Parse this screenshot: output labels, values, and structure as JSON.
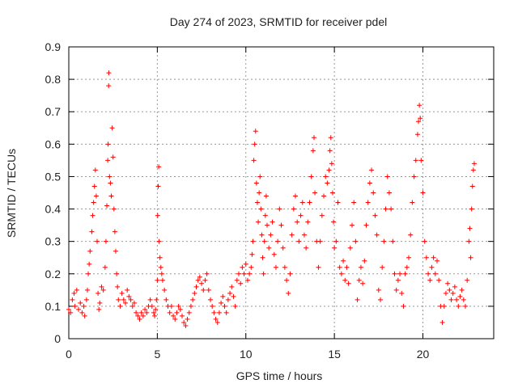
{
  "chart_data": {
    "type": "scatter",
    "title": "Day 274 of 2023, SRMTID for receiver pdel",
    "xlabel": "GPS time / hours",
    "ylabel": "SRMTID / TECUs",
    "xlim": [
      0,
      24
    ],
    "ylim": [
      0,
      0.9
    ],
    "xticks": [
      "0",
      "5",
      "10",
      "15",
      "20"
    ],
    "yticks": [
      "0",
      "0.1",
      "0.2",
      "0.3",
      "0.4",
      "0.5",
      "0.6",
      "0.7",
      "0.8",
      "0.9"
    ],
    "grid": true,
    "marker": "+",
    "color": "#ff0000",
    "series": [
      {
        "name": "SRMTID",
        "points": [
          [
            0.0,
            0.09
          ],
          [
            0.1,
            0.08
          ],
          [
            0.2,
            0.12
          ],
          [
            0.3,
            0.14
          ],
          [
            0.35,
            0.1
          ],
          [
            0.45,
            0.15
          ],
          [
            0.55,
            0.09
          ],
          [
            0.65,
            0.11
          ],
          [
            0.75,
            0.08
          ],
          [
            0.85,
            0.1
          ],
          [
            0.9,
            0.07
          ],
          [
            1.0,
            0.12
          ],
          [
            1.05,
            0.15
          ],
          [
            1.1,
            0.2
          ],
          [
            1.15,
            0.23
          ],
          [
            1.2,
            0.27
          ],
          [
            1.3,
            0.33
          ],
          [
            1.35,
            0.38
          ],
          [
            1.4,
            0.42
          ],
          [
            1.45,
            0.47
          ],
          [
            1.5,
            0.52
          ],
          [
            1.55,
            0.44
          ],
          [
            1.6,
            0.3
          ],
          [
            1.65,
            0.14
          ],
          [
            1.7,
            0.09
          ],
          [
            1.75,
            0.11
          ],
          [
            1.85,
            0.16
          ],
          [
            1.95,
            0.15
          ],
          [
            2.05,
            0.22
          ],
          [
            2.1,
            0.3
          ],
          [
            2.15,
            0.41
          ],
          [
            2.2,
            0.55
          ],
          [
            2.22,
            0.6
          ],
          [
            2.25,
            0.78
          ],
          [
            2.26,
            0.82
          ],
          [
            2.3,
            0.5
          ],
          [
            2.35,
            0.48
          ],
          [
            2.4,
            0.44
          ],
          [
            2.45,
            0.65
          ],
          [
            2.5,
            0.56
          ],
          [
            2.55,
            0.4
          ],
          [
            2.6,
            0.33
          ],
          [
            2.65,
            0.27
          ],
          [
            2.7,
            0.2
          ],
          [
            2.75,
            0.16
          ],
          [
            2.8,
            0.12
          ],
          [
            2.9,
            0.1
          ],
          [
            3.0,
            0.14
          ],
          [
            3.1,
            0.12
          ],
          [
            3.2,
            0.11
          ],
          [
            3.3,
            0.15
          ],
          [
            3.4,
            0.13
          ],
          [
            3.5,
            0.12
          ],
          [
            3.6,
            0.1
          ],
          [
            3.7,
            0.11
          ],
          [
            3.8,
            0.08
          ],
          [
            3.9,
            0.07
          ],
          [
            4.0,
            0.06
          ],
          [
            4.1,
            0.08
          ],
          [
            4.2,
            0.07
          ],
          [
            4.3,
            0.09
          ],
          [
            4.4,
            0.08
          ],
          [
            4.5,
            0.1
          ],
          [
            4.6,
            0.12
          ],
          [
            4.7,
            0.1
          ],
          [
            4.8,
            0.08
          ],
          [
            4.85,
            0.07
          ],
          [
            4.9,
            0.09
          ],
          [
            4.95,
            0.12
          ],
          [
            5.0,
            0.18
          ],
          [
            5.02,
            0.38
          ],
          [
            5.05,
            0.47
          ],
          [
            5.08,
            0.53
          ],
          [
            5.1,
            0.3
          ],
          [
            5.15,
            0.25
          ],
          [
            5.2,
            0.22
          ],
          [
            5.25,
            0.2
          ],
          [
            5.3,
            0.18
          ],
          [
            5.4,
            0.15
          ],
          [
            5.5,
            0.12
          ],
          [
            5.6,
            0.1
          ],
          [
            5.7,
            0.08
          ],
          [
            5.8,
            0.1
          ],
          [
            5.9,
            0.07
          ],
          [
            6.0,
            0.06
          ],
          [
            6.1,
            0.08
          ],
          [
            6.2,
            0.1
          ],
          [
            6.3,
            0.09
          ],
          [
            6.4,
            0.07
          ],
          [
            6.5,
            0.05
          ],
          [
            6.6,
            0.04
          ],
          [
            6.7,
            0.06
          ],
          [
            6.8,
            0.08
          ],
          [
            6.9,
            0.1
          ],
          [
            7.0,
            0.12
          ],
          [
            7.1,
            0.14
          ],
          [
            7.2,
            0.16
          ],
          [
            7.3,
            0.18
          ],
          [
            7.4,
            0.19
          ],
          [
            7.5,
            0.17
          ],
          [
            7.6,
            0.15
          ],
          [
            7.7,
            0.18
          ],
          [
            7.8,
            0.2
          ],
          [
            7.9,
            0.15
          ],
          [
            8.0,
            0.12
          ],
          [
            8.1,
            0.1
          ],
          [
            8.2,
            0.08
          ],
          [
            8.3,
            0.06
          ],
          [
            8.4,
            0.05
          ],
          [
            8.5,
            0.08
          ],
          [
            8.6,
            0.11
          ],
          [
            8.7,
            0.13
          ],
          [
            8.8,
            0.1
          ],
          [
            8.9,
            0.08
          ],
          [
            9.0,
            0.12
          ],
          [
            9.1,
            0.14
          ],
          [
            9.2,
            0.16
          ],
          [
            9.3,
            0.13
          ],
          [
            9.4,
            0.1
          ],
          [
            9.5,
            0.18
          ],
          [
            9.6,
            0.2
          ],
          [
            9.7,
            0.17
          ],
          [
            9.8,
            0.22
          ],
          [
            9.9,
            0.2
          ],
          [
            10.0,
            0.23
          ],
          [
            10.1,
            0.18
          ],
          [
            10.2,
            0.2
          ],
          [
            10.3,
            0.22
          ],
          [
            10.35,
            0.26
          ],
          [
            10.4,
            0.3
          ],
          [
            10.45,
            0.55
          ],
          [
            10.5,
            0.6
          ],
          [
            10.55,
            0.64
          ],
          [
            10.6,
            0.48
          ],
          [
            10.65,
            0.42
          ],
          [
            10.7,
            0.36
          ],
          [
            10.75,
            0.45
          ],
          [
            10.8,
            0.5
          ],
          [
            10.85,
            0.4
          ],
          [
            10.9,
            0.32
          ],
          [
            10.95,
            0.25
          ],
          [
            11.0,
            0.2
          ],
          [
            11.05,
            0.3
          ],
          [
            11.1,
            0.38
          ],
          [
            11.15,
            0.44
          ],
          [
            11.2,
            0.35
          ],
          [
            11.3,
            0.28
          ],
          [
            11.4,
            0.32
          ],
          [
            11.5,
            0.36
          ],
          [
            11.6,
            0.26
          ],
          [
            11.7,
            0.22
          ],
          [
            11.8,
            0.3
          ],
          [
            11.9,
            0.4
          ],
          [
            12.0,
            0.35
          ],
          [
            12.1,
            0.28
          ],
          [
            12.2,
            0.22
          ],
          [
            12.3,
            0.18
          ],
          [
            12.4,
            0.14
          ],
          [
            12.5,
            0.2
          ],
          [
            12.6,
            0.32
          ],
          [
            12.7,
            0.4
          ],
          [
            12.8,
            0.44
          ],
          [
            12.9,
            0.36
          ],
          [
            13.0,
            0.3
          ],
          [
            13.1,
            0.38
          ],
          [
            13.2,
            0.42
          ],
          [
            13.3,
            0.32
          ],
          [
            13.4,
            0.28
          ],
          [
            13.5,
            0.36
          ],
          [
            13.6,
            0.42
          ],
          [
            13.7,
            0.5
          ],
          [
            13.8,
            0.58
          ],
          [
            13.85,
            0.62
          ],
          [
            13.9,
            0.45
          ],
          [
            14.0,
            0.3
          ],
          [
            14.1,
            0.22
          ],
          [
            14.2,
            0.3
          ],
          [
            14.3,
            0.38
          ],
          [
            14.4,
            0.44
          ],
          [
            14.5,
            0.5
          ],
          [
            14.6,
            0.48
          ],
          [
            14.7,
            0.52
          ],
          [
            14.75,
            0.58
          ],
          [
            14.8,
            0.62
          ],
          [
            14.85,
            0.54
          ],
          [
            14.9,
            0.45
          ],
          [
            14.95,
            0.36
          ],
          [
            15.0,
            0.28
          ],
          [
            15.1,
            0.3
          ],
          [
            15.2,
            0.42
          ],
          [
            15.3,
            0.22
          ],
          [
            15.4,
            0.2
          ],
          [
            15.5,
            0.24
          ],
          [
            15.6,
            0.18
          ],
          [
            15.7,
            0.22
          ],
          [
            15.8,
            0.17
          ],
          [
            15.9,
            0.28
          ],
          [
            16.0,
            0.35
          ],
          [
            16.1,
            0.42
          ],
          [
            16.2,
            0.3
          ],
          [
            16.3,
            0.12
          ],
          [
            16.4,
            0.18
          ],
          [
            16.5,
            0.22
          ],
          [
            16.6,
            0.17
          ],
          [
            16.7,
            0.24
          ],
          [
            16.8,
            0.35
          ],
          [
            16.9,
            0.42
          ],
          [
            17.0,
            0.48
          ],
          [
            17.1,
            0.52
          ],
          [
            17.2,
            0.45
          ],
          [
            17.3,
            0.38
          ],
          [
            17.4,
            0.32
          ],
          [
            17.5,
            0.15
          ],
          [
            17.6,
            0.12
          ],
          [
            17.7,
            0.22
          ],
          [
            17.8,
            0.3
          ],
          [
            17.9,
            0.4
          ],
          [
            18.0,
            0.5
          ],
          [
            18.1,
            0.45
          ],
          [
            18.2,
            0.4
          ],
          [
            18.3,
            0.3
          ],
          [
            18.4,
            0.2
          ],
          [
            18.5,
            0.15
          ],
          [
            18.6,
            0.18
          ],
          [
            18.7,
            0.2
          ],
          [
            18.8,
            0.14
          ],
          [
            18.9,
            0.1
          ],
          [
            19.0,
            0.2
          ],
          [
            19.1,
            0.22
          ],
          [
            19.2,
            0.25
          ],
          [
            19.3,
            0.32
          ],
          [
            19.4,
            0.42
          ],
          [
            19.5,
            0.5
          ],
          [
            19.6,
            0.55
          ],
          [
            19.7,
            0.63
          ],
          [
            19.75,
            0.67
          ],
          [
            19.8,
            0.72
          ],
          [
            19.85,
            0.68
          ],
          [
            19.9,
            0.55
          ],
          [
            20.0,
            0.45
          ],
          [
            20.1,
            0.3
          ],
          [
            20.2,
            0.25
          ],
          [
            20.3,
            0.2
          ],
          [
            20.4,
            0.18
          ],
          [
            20.5,
            0.22
          ],
          [
            20.6,
            0.25
          ],
          [
            20.7,
            0.2
          ],
          [
            20.8,
            0.24
          ],
          [
            20.9,
            0.18
          ],
          [
            21.0,
            0.1
          ],
          [
            21.1,
            0.05
          ],
          [
            21.2,
            0.1
          ],
          [
            21.3,
            0.14
          ],
          [
            21.4,
            0.17
          ],
          [
            21.5,
            0.15
          ],
          [
            21.6,
            0.12
          ],
          [
            21.7,
            0.14
          ],
          [
            21.8,
            0.16
          ],
          [
            21.9,
            0.12
          ],
          [
            22.0,
            0.1
          ],
          [
            22.1,
            0.13
          ],
          [
            22.2,
            0.15
          ],
          [
            22.3,
            0.12
          ],
          [
            22.4,
            0.1
          ],
          [
            22.5,
            0.18
          ],
          [
            22.6,
            0.3
          ],
          [
            22.65,
            0.34
          ],
          [
            22.7,
            0.25
          ],
          [
            22.75,
            0.4
          ],
          [
            22.8,
            0.47
          ],
          [
            22.85,
            0.52
          ],
          [
            22.9,
            0.54
          ]
        ]
      }
    ]
  }
}
